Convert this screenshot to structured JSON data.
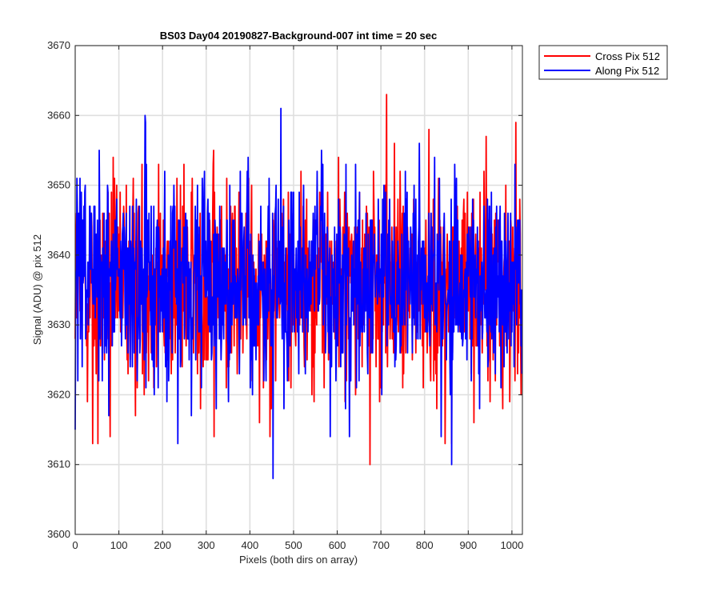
{
  "chart_data": {
    "type": "line",
    "title": "BS03 Day04 20190827-Background-007 int time = 20 sec",
    "xlabel": "Pixels (both dirs on array)",
    "ylabel": "Signal (ADU) @ pix 512",
    "xlim": [
      0,
      1024
    ],
    "ylim": [
      3600,
      3670
    ],
    "xticks": [
      0,
      100,
      200,
      300,
      400,
      500,
      600,
      700,
      800,
      900,
      1000
    ],
    "yticks": [
      3600,
      3610,
      3620,
      3630,
      3640,
      3650,
      3660,
      3670
    ],
    "grid": true,
    "legend_position": "outside-top-right",
    "series": [
      {
        "name": "Cross Pix 512",
        "color": "#ff0000",
        "summary": {
          "mean": 3636,
          "min": 3610,
          "max": 3663,
          "n": 1024
        },
        "anchors": [
          [
            40,
            3613
          ],
          [
            52,
            3613
          ],
          [
            80,
            3614
          ],
          [
            318,
            3614
          ],
          [
            675,
            3610
          ],
          [
            713,
            3663
          ],
          [
            862,
            3613
          ],
          [
            1009,
            3659
          ]
        ]
      },
      {
        "name": "Along Pix 512",
        "color": "#0000ff",
        "summary": {
          "mean": 3636,
          "min": 3608,
          "max": 3661,
          "n": 1024
        },
        "anchors": [
          [
            0,
            3615
          ],
          [
            160,
            3660
          ],
          [
            453,
            3608
          ],
          [
            471,
            3661
          ],
          [
            862,
            3610
          ]
        ]
      }
    ]
  }
}
